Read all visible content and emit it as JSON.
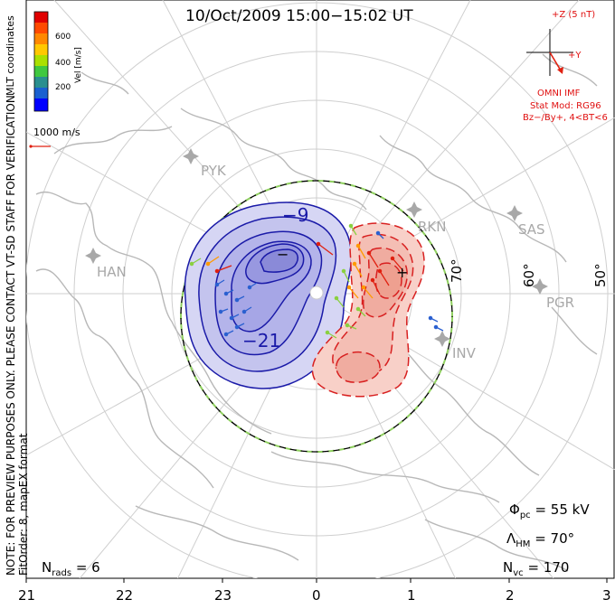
{
  "title": "10/Oct/2009  15:00−15:02 UT",
  "notes": {
    "preview": "NOTE: FOR PREVIEW PURPOSES ONLY. PLEASE CONTACT VT-SD STAFF FOR VERIFICATION.",
    "fit": "FitOrder: 8, mapEX format"
  },
  "colorbar": {
    "coords": "MLT coordinates",
    "label": "Vel [m/s]",
    "ticks": [
      "600",
      "400",
      "200"
    ],
    "colors": [
      "#0000ff",
      "#1fa0c8",
      "#2a8a3a",
      "#66d633",
      "#c8e000",
      "#ffd000",
      "#ff8800",
      "#ff3300",
      "#d80000"
    ],
    "vector_scale": "1000 m/s"
  },
  "imf": {
    "plus_z": "+Z (5 nT)",
    "plus_y": "+Y",
    "source": "OMNI IMF",
    "model": "Stat Mod: RG96",
    "condition": "Bz−/By+, 4<BT<6"
  },
  "stats": {
    "phi_pc_label": "Φ",
    "phi_pc_sub": "pc",
    "phi_pc_value": "=  55 kV",
    "lambda_label": "Λ",
    "lambda_sub": "HM",
    "lambda_value": "=  70°",
    "nvc_label": "N",
    "nvc_sub": "vc",
    "nvc_value": "=  170",
    "nrads_label": "N",
    "nrads_sub": "rads",
    "nrads_value": "=  6"
  },
  "mlt_labels": [
    "21",
    "22",
    "23",
    "0",
    "1",
    "2",
    "3"
  ],
  "latitude_labels": [
    "70°",
    "60°",
    "50°"
  ],
  "contour_labels": [
    "−9",
    "−21"
  ],
  "extrema": [
    "−",
    "+"
  ],
  "sites": [
    "PYK",
    "HAN",
    "RKN",
    "SAS",
    "PGR",
    "INV"
  ],
  "potential_colors": {
    "negative": "#1a1aa8",
    "negative_fill": "#c8c8f0",
    "positive": "#d82020",
    "positive_fill": "#f6c8c0",
    "boundary_green": "#90d060"
  }
}
